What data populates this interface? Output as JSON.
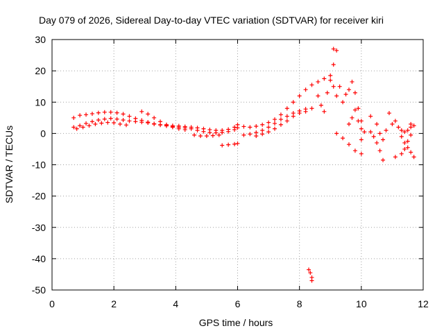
{
  "chart_data": {
    "type": "scatter",
    "title": "Day 079 of 2026, Sidereal Day-to-day VTEC variation (SDTVAR) for receiver kiri",
    "xlabel": "GPS time / hours",
    "ylabel": "SDTVAR / TECUs",
    "xlim": [
      0,
      12
    ],
    "ylim": [
      -50,
      30
    ],
    "x_ticks": [
      0,
      2,
      4,
      6,
      8,
      10,
      12
    ],
    "x_tick_labels": [
      "0",
      "2",
      "4",
      "6",
      "8",
      "10",
      "12"
    ],
    "y_ticks": [
      -50,
      -40,
      -30,
      -20,
      -10,
      0,
      10,
      20,
      30
    ],
    "y_tick_labels": [
      "-50",
      "-40",
      "-30",
      "-20",
      "-10",
      "0",
      "10",
      "20",
      "30"
    ],
    "grid": true,
    "marker": "+",
    "series": [
      {
        "name": "SDTVAR",
        "color": "#ff0000",
        "points": [
          [
            0.7,
            2.0
          ],
          [
            0.9,
            2.5
          ],
          [
            1.1,
            3.2
          ],
          [
            1.3,
            3.8
          ],
          [
            1.5,
            4.3
          ],
          [
            1.7,
            4.6
          ],
          [
            1.9,
            4.8
          ],
          [
            2.1,
            4.6
          ],
          [
            2.3,
            4.3
          ],
          [
            2.5,
            4.0
          ],
          [
            2.7,
            3.8
          ],
          [
            2.9,
            3.6
          ],
          [
            3.1,
            3.4
          ],
          [
            3.3,
            3.0
          ],
          [
            3.5,
            2.7
          ],
          [
            3.7,
            2.4
          ],
          [
            3.9,
            2.2
          ],
          [
            4.1,
            2.0
          ],
          [
            4.3,
            1.8
          ],
          [
            4.5,
            1.5
          ],
          [
            4.7,
            1.0
          ],
          [
            4.9,
            0.6
          ],
          [
            5.1,
            0.3
          ],
          [
            5.3,
            0.2
          ],
          [
            5.5,
            0.3
          ],
          [
            5.7,
            0.6
          ],
          [
            5.9,
            1.2
          ],
          [
            6.0,
            1.8
          ],
          [
            0.7,
            5.0
          ],
          [
            0.9,
            5.8
          ],
          [
            1.1,
            6.0
          ],
          [
            1.3,
            6.3
          ],
          [
            1.5,
            6.6
          ],
          [
            1.7,
            6.8
          ],
          [
            1.9,
            6.8
          ],
          [
            2.1,
            6.6
          ],
          [
            2.3,
            6.2
          ],
          [
            2.5,
            5.5
          ],
          [
            2.7,
            4.8
          ],
          [
            2.9,
            4.2
          ],
          [
            3.1,
            3.6
          ],
          [
            3.3,
            3.1
          ],
          [
            3.5,
            2.8
          ],
          [
            3.7,
            2.6
          ],
          [
            3.9,
            2.5
          ],
          [
            4.1,
            2.4
          ],
          [
            4.3,
            2.2
          ],
          [
            4.5,
            2.0
          ],
          [
            4.7,
            1.8
          ],
          [
            4.9,
            1.5
          ],
          [
            5.1,
            1.2
          ],
          [
            5.3,
            1.0
          ],
          [
            5.5,
            1.0
          ],
          [
            5.7,
            1.3
          ],
          [
            5.9,
            2.0
          ],
          [
            6.0,
            2.8
          ],
          [
            0.8,
            1.5
          ],
          [
            1.0,
            2.0
          ],
          [
            1.2,
            2.5
          ],
          [
            1.4,
            3.0
          ],
          [
            1.6,
            3.3
          ],
          [
            1.8,
            3.5
          ],
          [
            2.0,
            3.4
          ],
          [
            2.2,
            3.0
          ],
          [
            2.4,
            2.7
          ],
          [
            2.9,
            7.0
          ],
          [
            3.1,
            6.2
          ],
          [
            3.3,
            5.0
          ],
          [
            3.5,
            3.8
          ],
          [
            3.7,
            2.8
          ],
          [
            3.9,
            2.0
          ],
          [
            4.1,
            1.5
          ],
          [
            4.3,
            1.2
          ],
          [
            4.6,
            -0.5
          ],
          [
            4.8,
            -0.8
          ],
          [
            5.0,
            -0.8
          ],
          [
            5.2,
            -0.7
          ],
          [
            5.4,
            -0.5
          ],
          [
            5.5,
            -3.8
          ],
          [
            5.7,
            -3.6
          ],
          [
            5.9,
            -3.4
          ],
          [
            6.0,
            -3.2
          ],
          [
            6.2,
            2.2
          ],
          [
            6.4,
            2.0
          ],
          [
            6.6,
            2.3
          ],
          [
            6.8,
            2.8
          ],
          [
            7.0,
            3.5
          ],
          [
            7.2,
            4.5
          ],
          [
            7.4,
            6.0
          ],
          [
            7.6,
            8.0
          ],
          [
            7.8,
            10.0
          ],
          [
            8.0,
            12.0
          ],
          [
            8.2,
            14.0
          ],
          [
            8.4,
            15.5
          ],
          [
            8.6,
            16.5
          ],
          [
            8.8,
            17.5
          ],
          [
            9.0,
            18.5
          ],
          [
            6.2,
            -0.5
          ],
          [
            6.4,
            -0.2
          ],
          [
            6.6,
            0.3
          ],
          [
            6.8,
            1.0
          ],
          [
            7.0,
            2.0
          ],
          [
            7.2,
            3.2
          ],
          [
            7.4,
            4.5
          ],
          [
            7.6,
            5.5
          ],
          [
            7.8,
            6.5
          ],
          [
            8.0,
            7.2
          ],
          [
            8.2,
            7.8
          ],
          [
            8.4,
            8.0
          ],
          [
            6.6,
            -0.8
          ],
          [
            6.8,
            -0.2
          ],
          [
            7.0,
            0.5
          ],
          [
            7.2,
            1.5
          ],
          [
            7.4,
            2.8
          ],
          [
            7.6,
            4.0
          ],
          [
            7.8,
            5.5
          ],
          [
            8.0,
            6.5
          ],
          [
            8.2,
            7.0
          ],
          [
            8.6,
            12.0
          ],
          [
            8.7,
            9.0
          ],
          [
            8.8,
            7.0
          ],
          [
            8.9,
            13.0
          ],
          [
            9.0,
            17.0
          ],
          [
            9.1,
            15.0
          ],
          [
            9.1,
            22.0
          ],
          [
            9.1,
            27.0
          ],
          [
            9.2,
            26.5
          ],
          [
            9.2,
            12.0
          ],
          [
            9.3,
            15.0
          ],
          [
            9.4,
            10.0
          ],
          [
            9.5,
            12.5
          ],
          [
            9.6,
            14.0
          ],
          [
            9.7,
            16.5
          ],
          [
            9.8,
            13.0
          ],
          [
            9.9,
            8.0
          ],
          [
            10.0,
            4.0
          ],
          [
            10.1,
            0.5
          ],
          [
            10.0,
            -2.0
          ],
          [
            9.2,
            0.0
          ],
          [
            9.4,
            -1.5
          ],
          [
            9.6,
            -3.5
          ],
          [
            9.8,
            -5.5
          ],
          [
            10.0,
            -6.5
          ],
          [
            9.6,
            3.0
          ],
          [
            9.7,
            5.0
          ],
          [
            9.8,
            7.5
          ],
          [
            9.9,
            4.0
          ],
          [
            10.0,
            1.5
          ],
          [
            10.3,
            5.5
          ],
          [
            10.3,
            0.5
          ],
          [
            10.4,
            -1.0
          ],
          [
            10.5,
            -3.0
          ],
          [
            10.5,
            3.0
          ],
          [
            10.6,
            0.0
          ],
          [
            10.6,
            -5.5
          ],
          [
            10.7,
            -8.5
          ],
          [
            10.7,
            -2.0
          ],
          [
            10.8,
            1.0
          ],
          [
            10.9,
            6.5
          ],
          [
            11.0,
            3.0
          ],
          [
            11.1,
            4.0
          ],
          [
            11.2,
            2.0
          ],
          [
            11.3,
            1.0
          ],
          [
            11.3,
            -1.0
          ],
          [
            11.4,
            0.5
          ],
          [
            11.5,
            -2.5
          ],
          [
            11.6,
            -0.5
          ],
          [
            11.6,
            2.0
          ],
          [
            11.1,
            -7.5
          ],
          [
            11.3,
            -6.5
          ],
          [
            11.4,
            -5.0
          ],
          [
            11.5,
            -4.5
          ],
          [
            11.6,
            -6.0
          ],
          [
            11.7,
            -7.5
          ],
          [
            11.4,
            -3.0
          ],
          [
            11.5,
            1.0
          ],
          [
            11.6,
            3.0
          ],
          [
            11.7,
            2.5
          ],
          [
            8.3,
            -43.5
          ],
          [
            8.35,
            -44.5
          ],
          [
            8.4,
            -46.0
          ],
          [
            8.4,
            -47.0
          ]
        ]
      }
    ]
  }
}
